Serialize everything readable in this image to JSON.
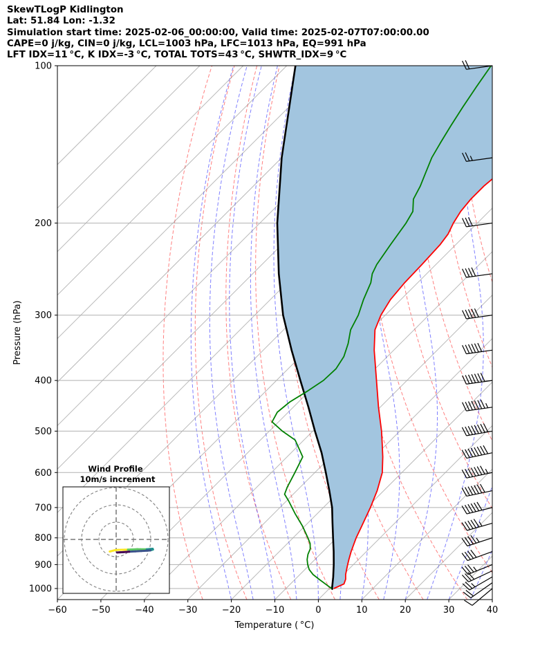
{
  "header": {
    "title": "SkewTLogP Kidlington",
    "location": "Lat: 51.84   Lon: -1.32",
    "times": "Simulation start time: 2025-02-06_00:00:00, Valid time: 2025-02-07T07:00:00.00",
    "indices1": "CAPE=0 j/kg, CIN=0 j/kg, LCL=1003 hPa, LFC=1013 hPa, EQ=991 hPa",
    "indices2": "LFT IDX=11 °C, K IDX=-3 °C, TOTAL TOTS=43 °C, SHWTR_IDX=9 °C"
  },
  "chart_data": {
    "type": "line",
    "title": "SkewTLogP Kidlington",
    "xlabel": "Temperature ( °C)",
    "ylabel": "Pressure (hPa)",
    "xlim": [
      -60,
      40
    ],
    "ylim": [
      1050,
      100
    ],
    "y_scale": "log",
    "skew": true,
    "grid": true,
    "x_ticks": [
      -60,
      -50,
      -40,
      -30,
      -20,
      -10,
      0,
      10,
      20,
      30,
      40
    ],
    "x_tick_labels": [
      "−60",
      "−50",
      "−40",
      "−30",
      "−20",
      "−10",
      "0",
      "10",
      "20",
      "30",
      "40"
    ],
    "y_ticks": [
      1000,
      900,
      800,
      700,
      600,
      500,
      400,
      300,
      200,
      100
    ],
    "y_tick_labels": [
      "1000",
      "900",
      "800",
      "700",
      "600",
      "500",
      "400",
      "300",
      "200",
      "100"
    ],
    "colors": {
      "temperature": "#ff0000",
      "dewpoint": "#008000",
      "parcel": "#000000",
      "cape_fill": "#a2c5df",
      "dry_adiabat": "#ff0000",
      "moist_adiabat": "#0000ff",
      "mixing_ratio": "#0000ff",
      "isotherm": "#808080"
    },
    "series": [
      {
        "name": "temperature",
        "pressure": [
          1000,
          980,
          960,
          940,
          920,
          900,
          880,
          850,
          800,
          760,
          700,
          650,
          600,
          560,
          530,
          500,
          450,
          400,
          350,
          320,
          300,
          280,
          260,
          240,
          220,
          210,
          200,
          190,
          180,
          170,
          160,
          150,
          140,
          130,
          120,
          110,
          100
        ],
        "temperature_c": [
          1.0,
          2.3,
          1.6,
          0.5,
          -0.4,
          -1.3,
          -2.2,
          -3.5,
          -5.5,
          -6.9,
          -9.2,
          -11.5,
          -14.5,
          -18.0,
          -21.0,
          -24.2,
          -30.4,
          -37.0,
          -44.5,
          -49.0,
          -51.0,
          -52.4,
          -53.0,
          -53.2,
          -53.6,
          -54.2,
          -55.5,
          -56.5,
          -57.0,
          -57.0,
          -56.4,
          -55.6,
          -55.0,
          -55.0,
          -56.0,
          -55.0,
          -54.2
        ]
      },
      {
        "name": "dewpoint",
        "pressure": [
          1000,
          980,
          960,
          940,
          920,
          900,
          880,
          860,
          840,
          820,
          800,
          760,
          720,
          680,
          660,
          640,
          600,
          560,
          520,
          500,
          480,
          460,
          440,
          420,
          400,
          380,
          360,
          340,
          320,
          300,
          280,
          260,
          250,
          240,
          220,
          200,
          190,
          180,
          170,
          160,
          150,
          140,
          130,
          120,
          110,
          100
        ],
        "temperature_c": [
          0.5,
          -2.0,
          -4.5,
          -7.0,
          -9.0,
          -10.5,
          -11.8,
          -12.8,
          -13.5,
          -14.8,
          -16.6,
          -20.5,
          -25.0,
          -29.5,
          -32.0,
          -33.0,
          -34.6,
          -36.4,
          -42.0,
          -47.0,
          -51.5,
          -52.5,
          -52.0,
          -50.5,
          -49.2,
          -49.0,
          -50.0,
          -52.0,
          -54.6,
          -56.2,
          -58.6,
          -60.8,
          -62.5,
          -63.6,
          -65.0,
          -66.4,
          -67.5,
          -70.2,
          -71.6,
          -73.5,
          -75.5,
          -77.0,
          -78.5,
          -80.0,
          -81.5,
          -83.0
        ]
      },
      {
        "name": "parcel",
        "pressure": [
          1005,
          1000,
          950,
          900,
          850,
          800,
          750,
          700,
          650,
          600,
          550,
          500,
          450,
          400,
          350,
          300,
          250,
          200,
          150,
          100
        ],
        "temperature_c": [
          1.0,
          0.6,
          -1.8,
          -4.5,
          -7.5,
          -10.8,
          -14.3,
          -18.0,
          -22.5,
          -27.5,
          -33.0,
          -39.5,
          -46.5,
          -54.5,
          -63.5,
          -73.5,
          -84.0,
          -96.0,
          -110.0,
          -128.0
        ]
      }
    ],
    "cape_fill": "between parcel and temperature",
    "wind_barbs": {
      "pressure": [
        1000,
        975,
        950,
        925,
        900,
        850,
        800,
        750,
        700,
        650,
        600,
        550,
        500,
        450,
        400,
        350,
        300,
        250,
        200,
        150,
        100
      ],
      "speed_kt": [
        10,
        20,
        25,
        30,
        35,
        40,
        45,
        55,
        60,
        70,
        75,
        80,
        80,
        75,
        70,
        60,
        50,
        40,
        30,
        25,
        20
      ],
      "direction_deg": [
        230,
        235,
        240,
        245,
        248,
        250,
        252,
        254,
        256,
        258,
        258,
        258,
        260,
        262,
        262,
        262,
        262,
        262,
        262,
        262,
        262
      ]
    },
    "inset": {
      "title": "Wind Profile",
      "subtitle": "10m/s increment",
      "rings": [
        10,
        20,
        30
      ],
      "hodograph_colors": [
        "#fde725",
        "#5ec962",
        "#21918c",
        "#3b528b",
        "#440154"
      ]
    }
  }
}
